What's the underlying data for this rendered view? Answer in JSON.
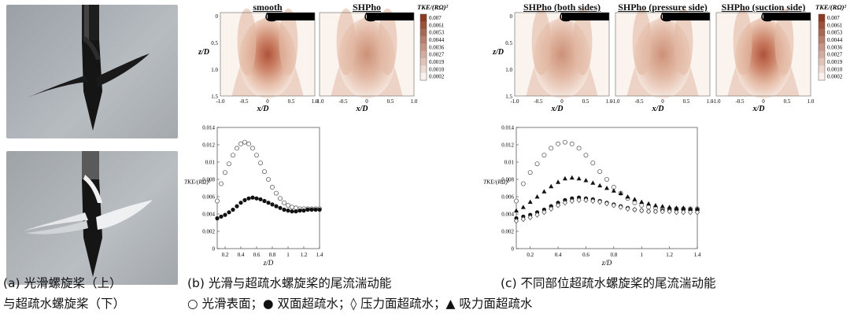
{
  "panel_labels": {
    "smooth": "smooth",
    "shpho": "SHPho",
    "both": "SHPho (both sides)",
    "pressure": "SHPho (pressure side)",
    "suction": "SHPho (suction side)"
  },
  "contour": {
    "legend_title": "TKE/(RΩ)²",
    "legend_values": [
      "0.007",
      "0.0061",
      "0.0053",
      "0.0044",
      "0.0036",
      "0.0027",
      "0.0019",
      "0.0010",
      "0.0002"
    ],
    "x_label": "x/D",
    "z_label": "z/D",
    "x_ticks": [
      "-1.0",
      "-0.5",
      "0",
      "0.5",
      "1.0"
    ],
    "z_ticks": [
      "0",
      "0.5",
      "1.0",
      "1.5"
    ]
  },
  "captions": {
    "a_line1": "(a) 光滑螺旋桨（上）",
    "a_line2": "与超疏水螺旋桨（下）",
    "b": "(b) 光滑与超疏水螺旋桨的尾流湍动能",
    "c": "(c) 不同部位超疏水螺旋桨的尾流湍动能",
    "legend": "○ 光滑表面；● 双面超疏水；◊ 压力面超疏水；▲ 吸力面超疏水"
  },
  "chart_data": [
    {
      "type": "scatter",
      "xlabel": "z/D",
      "ylabel": "TKE/(RΩ)²",
      "xlim": [
        0.1,
        1.4
      ],
      "ylim": [
        0,
        0.014
      ],
      "x_ticks": [
        "0.2",
        "0.4",
        "0.6",
        "0.8",
        "1",
        "1.2",
        "1.4"
      ],
      "y_ticks": [
        "0",
        "0.002",
        "0.004",
        "0.006",
        "0.008",
        "0.01",
        "0.012",
        "0.014"
      ],
      "series": [
        {
          "marker": "open-circle",
          "x": [
            0.1,
            0.15,
            0.2,
            0.25,
            0.3,
            0.35,
            0.4,
            0.45,
            0.5,
            0.55,
            0.6,
            0.65,
            0.7,
            0.75,
            0.8,
            0.85,
            0.9,
            0.95,
            1.0,
            1.05,
            1.1,
            1.15,
            1.2,
            1.25,
            1.3,
            1.35,
            1.4
          ],
          "values": [
            0.0055,
            0.0075,
            0.0088,
            0.0098,
            0.0108,
            0.0116,
            0.0121,
            0.0123,
            0.0121,
            0.0116,
            0.0108,
            0.0099,
            0.0089,
            0.008,
            0.0071,
            0.0064,
            0.0058,
            0.0053,
            0.005,
            0.0048,
            0.0047,
            0.0046,
            0.0046,
            0.0046,
            0.0046,
            0.0046,
            0.0046
          ]
        },
        {
          "marker": "filled-circle",
          "x": [
            0.1,
            0.15,
            0.2,
            0.25,
            0.3,
            0.35,
            0.4,
            0.45,
            0.5,
            0.55,
            0.6,
            0.65,
            0.7,
            0.75,
            0.8,
            0.85,
            0.9,
            0.95,
            1.0,
            1.05,
            1.1,
            1.15,
            1.2,
            1.25,
            1.3,
            1.35,
            1.4
          ],
          "values": [
            0.0035,
            0.0037,
            0.0039,
            0.0042,
            0.0045,
            0.0049,
            0.0053,
            0.0056,
            0.0058,
            0.0059,
            0.0058,
            0.0057,
            0.0055,
            0.0053,
            0.0051,
            0.0049,
            0.0047,
            0.0045,
            0.0044,
            0.0043,
            0.0043,
            0.0044,
            0.0044,
            0.0045,
            0.0045,
            0.0045,
            0.0045
          ]
        }
      ]
    },
    {
      "type": "scatter",
      "xlabel": "z/D",
      "ylabel": "TKE/(RΩ)²",
      "xlim": [
        0.1,
        1.4
      ],
      "ylim": [
        0,
        0.014
      ],
      "x_ticks": [
        "0.2",
        "0.4",
        "0.6",
        "0.8",
        "1",
        "1.2",
        "1.4"
      ],
      "y_ticks": [
        "0",
        "0.002",
        "0.004",
        "0.006",
        "0.008",
        "0.01",
        "0.012",
        "0.014"
      ],
      "series": [
        {
          "marker": "open-circle",
          "x": [
            0.1,
            0.15,
            0.2,
            0.25,
            0.3,
            0.35,
            0.4,
            0.45,
            0.5,
            0.55,
            0.6,
            0.65,
            0.7,
            0.75,
            0.8,
            0.85,
            0.9,
            0.95,
            1.0,
            1.05,
            1.1,
            1.15,
            1.2,
            1.25,
            1.3,
            1.35,
            1.4
          ],
          "values": [
            0.0055,
            0.0075,
            0.0088,
            0.0098,
            0.0108,
            0.0116,
            0.0121,
            0.0123,
            0.0121,
            0.0116,
            0.0108,
            0.0099,
            0.0089,
            0.008,
            0.0071,
            0.0064,
            0.0058,
            0.0053,
            0.005,
            0.0048,
            0.0047,
            0.0046,
            0.0046,
            0.0046,
            0.0046,
            0.0046,
            0.0046
          ]
        },
        {
          "marker": "filled-circle",
          "x": [
            0.1,
            0.15,
            0.2,
            0.25,
            0.3,
            0.35,
            0.4,
            0.45,
            0.5,
            0.55,
            0.6,
            0.65,
            0.7,
            0.75,
            0.8,
            0.85,
            0.9,
            0.95,
            1.0,
            1.05,
            1.1,
            1.15,
            1.2,
            1.25,
            1.3,
            1.35,
            1.4
          ],
          "values": [
            0.0035,
            0.0037,
            0.0039,
            0.0042,
            0.0045,
            0.0049,
            0.0053,
            0.0056,
            0.0058,
            0.0059,
            0.0058,
            0.0057,
            0.0055,
            0.0053,
            0.0051,
            0.0049,
            0.0047,
            0.0045,
            0.0044,
            0.0043,
            0.0043,
            0.0044,
            0.0044,
            0.0045,
            0.0045,
            0.0045,
            0.0045
          ]
        },
        {
          "marker": "open-diamond",
          "x": [
            0.1,
            0.15,
            0.2,
            0.25,
            0.3,
            0.35,
            0.4,
            0.45,
            0.5,
            0.55,
            0.6,
            0.65,
            0.7,
            0.75,
            0.8,
            0.85,
            0.9,
            0.95,
            1.0,
            1.05,
            1.1,
            1.15,
            1.2,
            1.25,
            1.3,
            1.35,
            1.4
          ],
          "values": [
            0.0032,
            0.0034,
            0.0036,
            0.0039,
            0.0042,
            0.0046,
            0.005,
            0.0053,
            0.0055,
            0.0056,
            0.0056,
            0.0055,
            0.0054,
            0.0052,
            0.005,
            0.0048,
            0.0046,
            0.0045,
            0.0044,
            0.0043,
            0.0043,
            0.0043,
            0.0043,
            0.0042,
            0.0042,
            0.0042,
            0.0042
          ]
        },
        {
          "marker": "filled-triangle",
          "x": [
            0.1,
            0.15,
            0.2,
            0.25,
            0.3,
            0.35,
            0.4,
            0.45,
            0.5,
            0.55,
            0.6,
            0.65,
            0.7,
            0.75,
            0.8,
            0.85,
            0.9,
            0.95,
            1.0,
            1.05,
            1.1,
            1.15,
            1.2,
            1.25,
            1.3,
            1.35,
            1.4
          ],
          "values": [
            0.0044,
            0.0048,
            0.0054,
            0.006,
            0.0066,
            0.0072,
            0.0077,
            0.0081,
            0.0082,
            0.0081,
            0.0079,
            0.0076,
            0.0073,
            0.007,
            0.0067,
            0.0064,
            0.006,
            0.0057,
            0.0054,
            0.0052,
            0.005,
            0.0049,
            0.0048,
            0.0047,
            0.0047,
            0.0046,
            0.0046
          ]
        }
      ]
    }
  ]
}
